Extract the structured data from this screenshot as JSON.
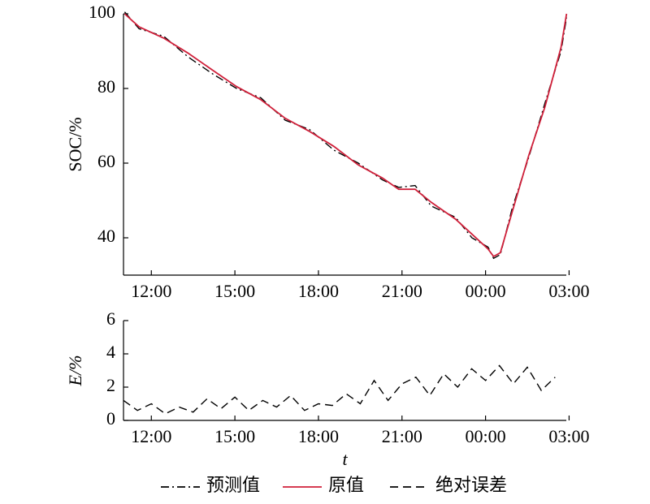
{
  "chart_data": [
    {
      "type": "line",
      "y_label": "SOC/%",
      "x": [
        11.04,
        11.56,
        12.44,
        13.31,
        14.18,
        15.06,
        15.93,
        16.81,
        17.68,
        18.55,
        19.43,
        20.3,
        20.88,
        21.47,
        22.05,
        22.92,
        23.51,
        24.09,
        24.29,
        24.53,
        24.96,
        25.55,
        26.13,
        26.71,
        26.91
      ],
      "series": [
        {
          "name": "预测值",
          "color": "#000000",
          "style": "dashdot",
          "values": [
            100.5,
            96,
            94,
            88.5,
            84,
            80,
            77.5,
            71.5,
            69,
            63.5,
            60,
            55.5,
            53.5,
            54,
            48.5,
            45.5,
            40,
            37.5,
            34.5,
            35.5,
            48,
            61.5,
            76,
            90,
            99
          ]
        },
        {
          "name": "原值",
          "color": "#d0203a",
          "style": "solid",
          "values": [
            100,
            96.5,
            93.5,
            89.5,
            85,
            80.5,
            77,
            72,
            68.5,
            64.5,
            59.5,
            56,
            53,
            53,
            49.5,
            45,
            41,
            37,
            35,
            36,
            47,
            62,
            75,
            91,
            100
          ]
        }
      ],
      "xlim": [
        11,
        26.9
      ],
      "xticks": [
        {
          "value": 12,
          "label": "12:00"
        },
        {
          "value": 15,
          "label": "15:00"
        },
        {
          "value": 18,
          "label": "18:00"
        },
        {
          "value": 21,
          "label": "21:00"
        },
        {
          "value": 24,
          "label": "00:00"
        },
        {
          "value": 27,
          "label": "03:00"
        }
      ],
      "ylim": [
        30,
        100
      ],
      "yticks": [
        40,
        60,
        80,
        100
      ]
    },
    {
      "type": "line",
      "y_label": "E/%",
      "x_label": "t",
      "x": [
        11,
        11.5,
        12,
        12.5,
        13,
        13.5,
        14,
        14.5,
        15,
        15.5,
        16,
        16.5,
        17,
        17.5,
        18,
        18.5,
        19,
        19.5,
        20,
        20.5,
        21,
        21.5,
        22,
        22.5,
        23,
        23.5,
        24,
        24.5,
        25,
        25.5,
        26,
        26.5
      ],
      "series": [
        {
          "name": "绝对误差",
          "color": "#000000",
          "style": "dashed",
          "values": [
            1.2,
            0.6,
            1.0,
            0.4,
            0.8,
            0.5,
            1.3,
            0.7,
            1.4,
            0.6,
            1.2,
            0.8,
            1.5,
            0.6,
            1.0,
            0.9,
            1.6,
            1.0,
            2.4,
            1.2,
            2.2,
            2.6,
            1.5,
            2.8,
            2.0,
            3.1,
            2.4,
            3.3,
            2.2,
            3.2,
            1.8,
            2.6
          ]
        }
      ],
      "xlim": [
        11,
        26.9
      ],
      "xticks": [
        {
          "value": 12,
          "label": "12:00"
        },
        {
          "value": 15,
          "label": "15:00"
        },
        {
          "value": 18,
          "label": "18:00"
        },
        {
          "value": 21,
          "label": "21:00"
        },
        {
          "value": 24,
          "label": "00:00"
        },
        {
          "value": 27,
          "label": "03:00"
        }
      ],
      "ylim": [
        0,
        6
      ],
      "yticks": [
        0,
        2,
        4,
        6
      ]
    }
  ]
}
